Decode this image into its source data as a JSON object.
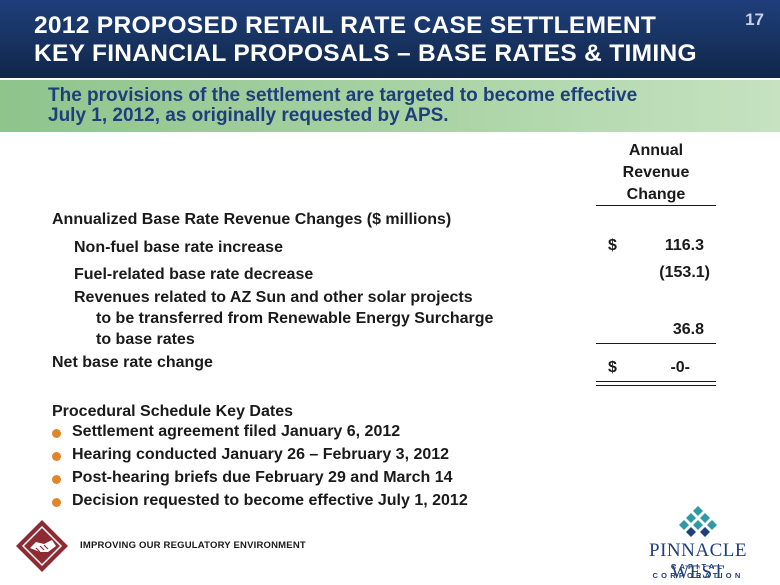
{
  "header": {
    "title_line1": "2012 PROPOSED RETAIL RATE CASE SETTLEMENT",
    "title_line2": "KEY FINANCIAL PROPOSALS – BASE RATES & TIMING",
    "slide_number": "17"
  },
  "subtitle": {
    "line1": "The provisions of the settlement are targeted to become effective",
    "line2": "July 1, 2012, as originally requested by APS."
  },
  "table": {
    "column_header": [
      "Annual",
      "Revenue",
      "Change"
    ],
    "section_title": "Annualized Base Rate Revenue Changes ($ millions)",
    "rows": [
      {
        "label_lines": [
          "Non-fuel base rate increase"
        ],
        "currency": "$",
        "value": "116.3"
      },
      {
        "label_lines": [
          "Fuel-related base rate decrease"
        ],
        "currency": "",
        "value": "(153.1)"
      },
      {
        "label_lines": [
          "Revenues related to AZ Sun and other solar projects",
          "to be transferred from Renewable Energy Surcharge",
          "to base rates"
        ],
        "currency": "",
        "value": "36.8"
      }
    ],
    "total": {
      "label": "Net base rate change",
      "currency": "$",
      "value": "-0-"
    }
  },
  "schedule": {
    "title": "Procedural Schedule Key Dates",
    "items": [
      "Settlement agreement filed January 6, 2012",
      "Hearing conducted January 26 – February 3, 2012",
      "Post-hearing briefs due February 29 and March 14",
      "Decision requested to become effective July 1, 2012"
    ]
  },
  "footer": {
    "tagline": "IMPROVING OUR REGULATORY ENVIRONMENT",
    "logo_icon": "handshake-icon",
    "brand_name": "PINNACLE WEST",
    "brand_sub": "CAPITAL CORPORATION",
    "brand_icon": "diamond-grid-icon"
  },
  "colors": {
    "header_blue": "#1f3f7c",
    "band_green": "#a9d3a4",
    "bullet_orange": "#e0862a",
    "logo_red": "#8e2a32"
  }
}
